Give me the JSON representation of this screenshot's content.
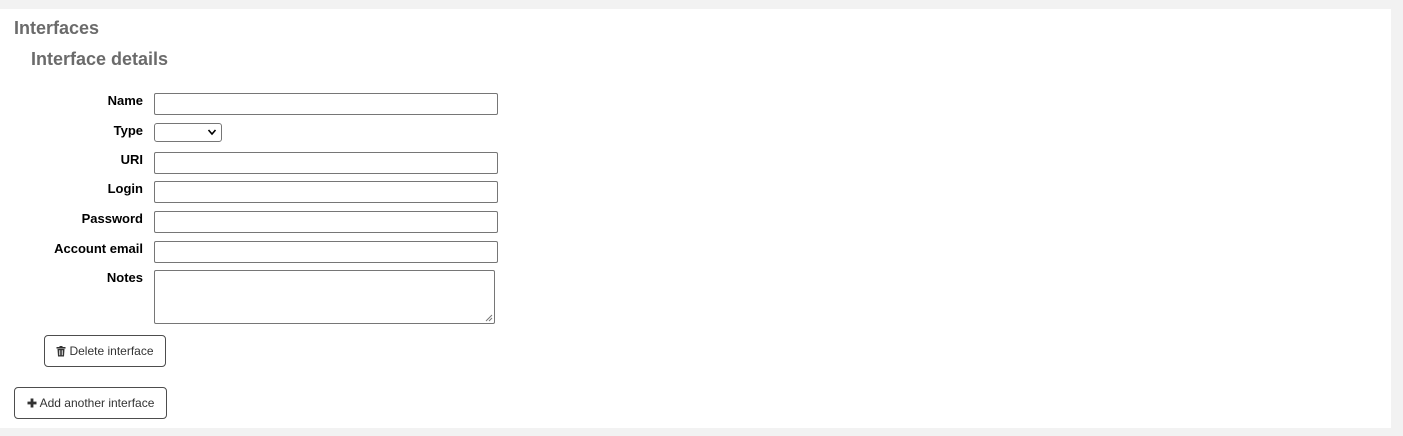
{
  "page": {
    "title": "Interfaces",
    "section_title": "Interface details"
  },
  "form": {
    "fields": {
      "name": {
        "label": "Name",
        "value": ""
      },
      "type": {
        "label": "Type",
        "selected": ""
      },
      "uri": {
        "label": "URI",
        "value": ""
      },
      "login": {
        "label": "Login",
        "value": ""
      },
      "password": {
        "label": "Password",
        "value": ""
      },
      "account_email": {
        "label": "Account email",
        "value": ""
      },
      "notes": {
        "label": "Notes",
        "value": ""
      }
    },
    "delete_button": {
      "label": "Delete interface",
      "icon": "trash-icon"
    }
  },
  "add_button": {
    "label": "Add another interface",
    "icon": "plus-icon"
  }
}
